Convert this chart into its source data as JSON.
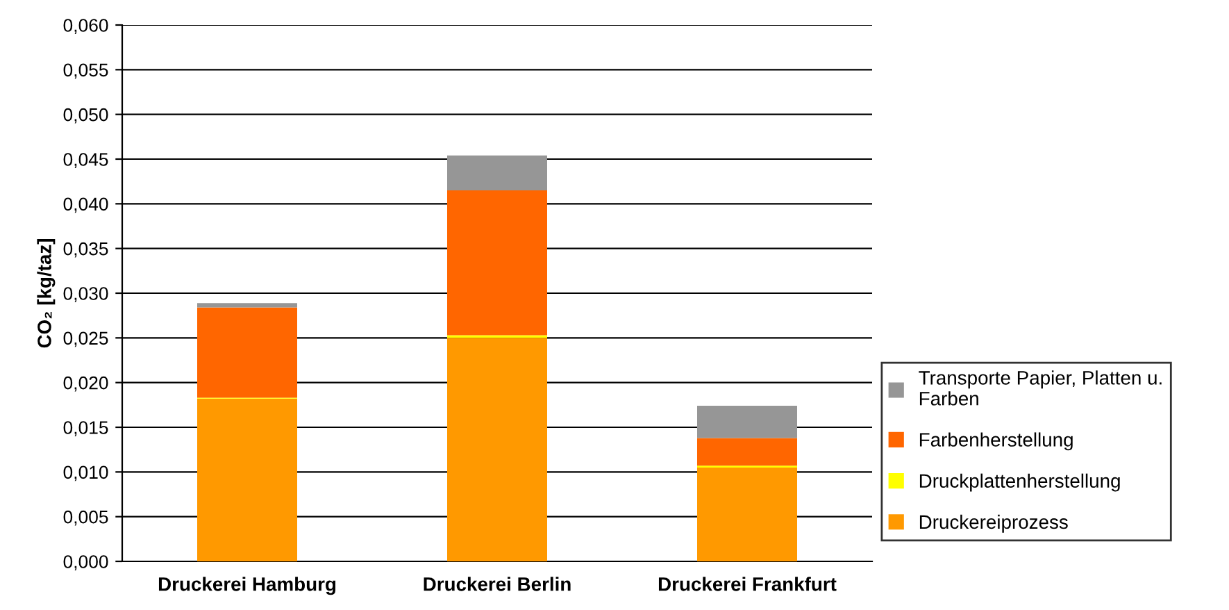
{
  "chart_data": {
    "type": "bar",
    "stacked": true,
    "ylabel": "CO₂ [kg/taz]",
    "categories": [
      "Druckerei Hamburg",
      "Druckerei Berlin",
      "Druckerei Frankfurt"
    ],
    "series": [
      {
        "name": "Druckereiprozess",
        "color": "#ff9900",
        "values": [
          0.0182,
          0.025,
          0.0105
        ]
      },
      {
        "name": "Druckplattenherstellung",
        "color": "#ffff00",
        "values": [
          0.0001,
          0.0003,
          0.0002
        ]
      },
      {
        "name": "Farbenherstellung",
        "color": "#ff6600",
        "values": [
          0.0101,
          0.0162,
          0.0031
        ]
      },
      {
        "name": "Transporte Papier, Platten u. Farben",
        "color": "#969696",
        "values": [
          0.0005,
          0.0039,
          0.0036
        ]
      }
    ],
    "ylim": [
      0,
      0.06
    ],
    "yticks": [
      {
        "value": 0,
        "label": "0,000"
      },
      {
        "value": 0.005,
        "label": "0,005"
      },
      {
        "value": 0.01,
        "label": "0,010"
      },
      {
        "value": 0.015,
        "label": "0,015"
      },
      {
        "value": 0.02,
        "label": "0,020"
      },
      {
        "value": 0.025,
        "label": "0,025"
      },
      {
        "value": 0.03,
        "label": "0,030"
      },
      {
        "value": 0.035,
        "label": "0,035"
      },
      {
        "value": 0.04,
        "label": "0,040"
      },
      {
        "value": 0.045,
        "label": "0,045"
      },
      {
        "value": 0.05,
        "label": "0,050"
      },
      {
        "value": 0.055,
        "label": "0,055"
      },
      {
        "value": 0.06,
        "label": "0,060"
      }
    ],
    "grid": "y",
    "legend": "right"
  }
}
